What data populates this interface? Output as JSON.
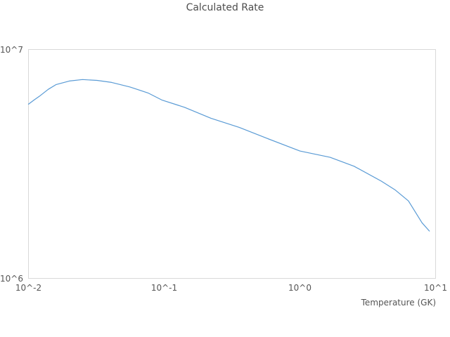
{
  "title": "Calculated Rate",
  "colors": {
    "line": "#5a9bd5",
    "plot_border": "#d9d9d9",
    "tick_text": "#555555",
    "title_text": "#4d4d4d",
    "background": "#ffffff"
  },
  "chart_data": {
    "type": "line",
    "title": "Calculated Rate",
    "xlabel": "Temperature (GK)",
    "ylabel": "",
    "x_scale": "log",
    "y_scale": "log",
    "xlim": [
      0.01,
      10
    ],
    "ylim": [
      1000000,
      10000000
    ],
    "x_tick_values": [
      0.01,
      0.1,
      1,
      10
    ],
    "x_tick_labels": [
      "10^-2",
      "10^-1",
      "10^0",
      "10^1"
    ],
    "y_tick_values": [
      1000000,
      10000000
    ],
    "y_tick_labels": [
      "10^6",
      "10^7"
    ],
    "grid": false,
    "legend": false,
    "series": [
      {
        "name": "calculated-rate",
        "x": [
          0.01,
          0.011,
          0.012,
          0.014,
          0.016,
          0.02,
          0.025,
          0.032,
          0.041,
          0.056,
          0.076,
          0.096,
          0.141,
          0.221,
          0.357,
          0.573,
          1.0,
          1.67,
          2.51,
          3.98,
          5.01,
          6.31,
          7.94,
          9.0
        ],
        "y": [
          5770000,
          6020000,
          6240000,
          6700000,
          7030000,
          7280000,
          7390000,
          7330000,
          7180000,
          6860000,
          6460000,
          6020000,
          5590000,
          5010000,
          4570000,
          4090000,
          3600000,
          3380000,
          3090000,
          2660000,
          2440000,
          2180000,
          1750000,
          1610000
        ]
      }
    ]
  }
}
